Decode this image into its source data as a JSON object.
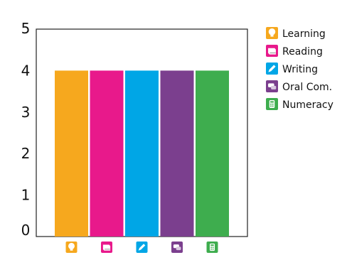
{
  "chart_data": {
    "type": "bar",
    "categories": [
      "Learning",
      "Reading",
      "Writing",
      "Oral Com.",
      "Numeracy"
    ],
    "values": [
      4,
      4,
      4,
      4,
      4
    ],
    "colors": [
      "#F6A81E",
      "#E8198B",
      "#00A6E6",
      "#7B3F8E",
      "#3EAD4E"
    ],
    "icons": [
      "lightbulb-icon",
      "book-icon",
      "pencil-icon",
      "speech-bubbles-icon",
      "calculator-icon"
    ],
    "ylim": [
      0,
      5
    ],
    "yticks": [
      "0",
      "1",
      "2",
      "3",
      "4",
      "5"
    ],
    "grid": false,
    "legend_position": "top-right",
    "title": "",
    "xlabel": "",
    "ylabel": ""
  }
}
